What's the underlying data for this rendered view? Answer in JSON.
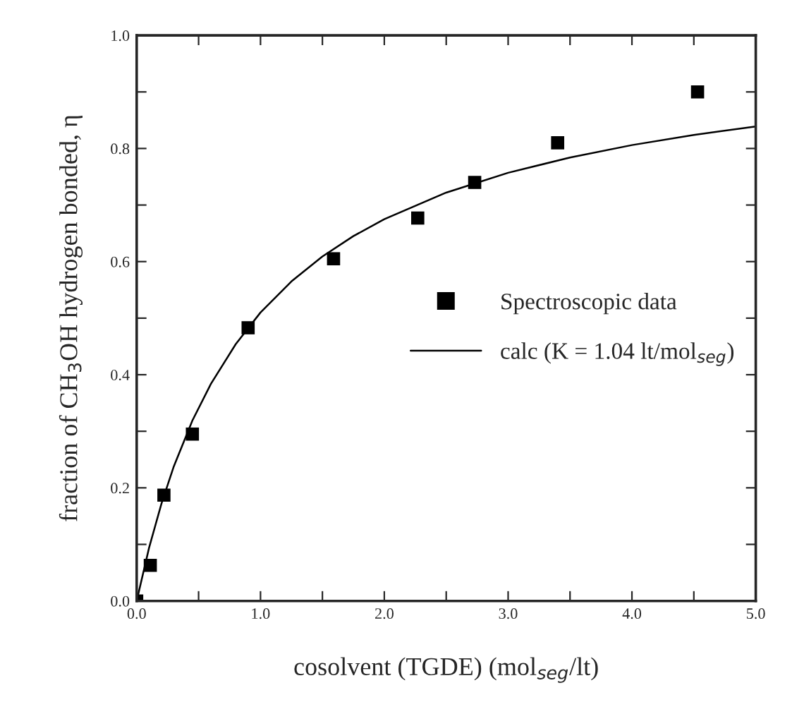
{
  "chart_data": {
    "type": "scatter",
    "xlabel": "cosolvent (TGDE) (mol$_{seg}$/lt)",
    "ylabel": "fraction of CH$_{3}$OH hydrogen bonded, η",
    "xlim": [
      0,
      5
    ],
    "ylim": [
      0,
      1
    ],
    "xticks": [
      {
        "value": 0,
        "label": "0.0"
      },
      {
        "value": 0.5,
        "label": null
      },
      {
        "value": 1,
        "label": "1.0"
      },
      {
        "value": 1.5,
        "label": null
      },
      {
        "value": 2,
        "label": "2.0"
      },
      {
        "value": 2.5,
        "label": null
      },
      {
        "value": 3,
        "label": "3.0"
      },
      {
        "value": 3.5,
        "label": null
      },
      {
        "value": 4,
        "label": "4.0"
      },
      {
        "value": 4.5,
        "label": null
      },
      {
        "value": 5,
        "label": "5.0"
      }
    ],
    "yticks": [
      {
        "value": 0,
        "label": "0.0"
      },
      {
        "value": 0.1,
        "label": null
      },
      {
        "value": 0.2,
        "label": "0.2"
      },
      {
        "value": 0.3,
        "label": null
      },
      {
        "value": 0.4,
        "label": "0.4"
      },
      {
        "value": 0.5,
        "label": null
      },
      {
        "value": 0.6,
        "label": "0.6"
      },
      {
        "value": 0.7,
        "label": null
      },
      {
        "value": 0.8,
        "label": "0.8"
      },
      {
        "value": 0.9,
        "label": null
      },
      {
        "value": 1,
        "label": "1.0"
      }
    ],
    "grid": false,
    "legend": "right",
    "series": [
      {
        "name": "Spectroscopic data",
        "marker": "square",
        "color": "#000000",
        "x": [
          0,
          0.11,
          0.22,
          0.45,
          0.9,
          1.59,
          2.27,
          2.73,
          3.4,
          4.53
        ],
        "values": [
          0,
          0.063,
          0.187,
          0.295,
          0.483,
          0.605,
          0.677,
          0.74,
          0.81,
          0.9
        ]
      },
      {
        "name": "calc (K = 1.04 lt/mol$_{seg}$)",
        "type": "line",
        "marker": "none",
        "line_style": "solid",
        "color": "#000000",
        "x": [
          0,
          0.1,
          0.2,
          0.3,
          0.45,
          0.6,
          0.8,
          1.0,
          1.25,
          1.5,
          1.75,
          2.0,
          2.5,
          3.0,
          3.5,
          4.0,
          4.5,
          5.0
        ],
        "values": [
          0,
          0.094,
          0.172,
          0.238,
          0.319,
          0.384,
          0.454,
          0.51,
          0.565,
          0.609,
          0.645,
          0.675,
          0.722,
          0.757,
          0.784,
          0.806,
          0.824,
          0.839
        ]
      }
    ]
  }
}
